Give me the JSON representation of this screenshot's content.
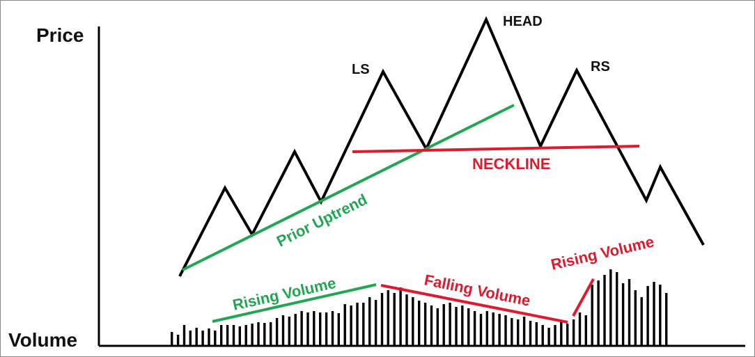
{
  "labels": {
    "price": "Price",
    "volume": "Volume",
    "head": "HEAD",
    "left_shoulder": "LS",
    "right_shoulder": "RS",
    "neckline": "NECKLINE",
    "prior_uptrend": "Prior Uptrend",
    "rising_volume_left": "Rising Volume",
    "falling_volume": "Falling Volume",
    "rising_volume_right": "Rising Volume"
  },
  "colors": {
    "price_line": "#000000",
    "green": "#22a652",
    "red": "#e0192c",
    "volume_bars": "#000000",
    "frame": "#888888"
  }
}
